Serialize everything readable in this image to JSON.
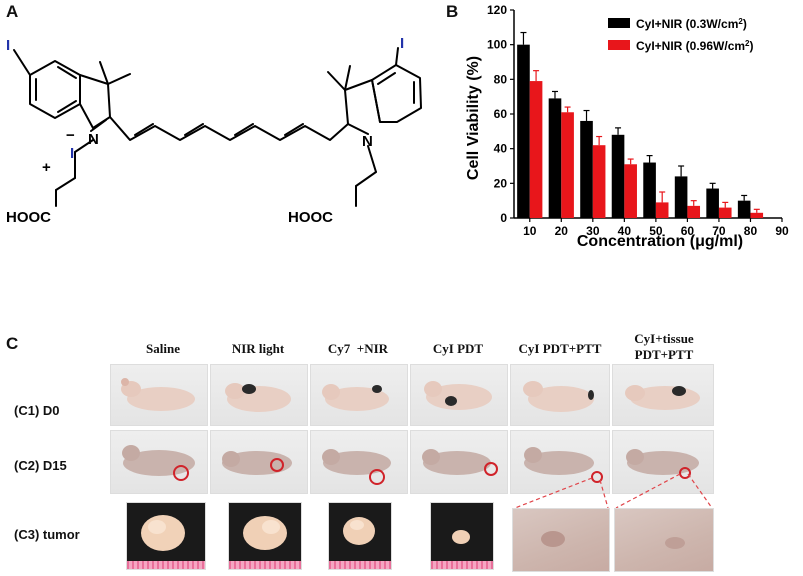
{
  "panel_labels": {
    "a": "A",
    "b": "B",
    "c": "C"
  },
  "structure": {
    "iodine_left": "I",
    "iodine_right": "I",
    "nitrogen_left": "N",
    "nitrogen_right": "N",
    "plus": "+",
    "counter_ion": "I",
    "minus": "−",
    "acid_left": "HOOC",
    "acid_right": "HOOC"
  },
  "chart_data": {
    "type": "bar",
    "title": "",
    "xlabel": "Concentration (μg/ml)",
    "ylabel": "Cell Viability (%)",
    "x": [
      10,
      20,
      30,
      40,
      50,
      60,
      70,
      80
    ],
    "xticks": [
      10,
      20,
      30,
      40,
      50,
      60,
      70,
      80,
      90
    ],
    "yticks": [
      0,
      20,
      40,
      60,
      80,
      100,
      120
    ],
    "xlim": [
      5,
      90
    ],
    "ylim": [
      0,
      120
    ],
    "grid": false,
    "legend_position": "top-right",
    "series": [
      {
        "name": "CyI+NIR (0.3W/cm",
        "sup": "2",
        "suffix": ")",
        "color": "#000000",
        "values": [
          100,
          69,
          56,
          48,
          32,
          24,
          17,
          10
        ],
        "errors": [
          7,
          4,
          6,
          4,
          4,
          6,
          3,
          3
        ]
      },
      {
        "name": "CyI+NIR (0.96W/cm",
        "sup": "2",
        "suffix": ")",
        "color": "#e8161b",
        "values": [
          79,
          61,
          42,
          31,
          9,
          7,
          6,
          3
        ],
        "errors": [
          6,
          3,
          5,
          3,
          6,
          3,
          3,
          2
        ]
      }
    ]
  },
  "panel_c": {
    "columns": [
      "Saline",
      "NIR light",
      "Cy7  +NIR",
      "CyI PDT",
      "CyI PDT+PTT",
      "CyI+tissue",
      "PDT+PTT"
    ],
    "rows": [
      "(C1) D0",
      "(C2) D15",
      "(C3) tumor"
    ]
  },
  "colors": {
    "marker_circle": "#d0232a",
    "zoom_line": "#e0454a"
  }
}
